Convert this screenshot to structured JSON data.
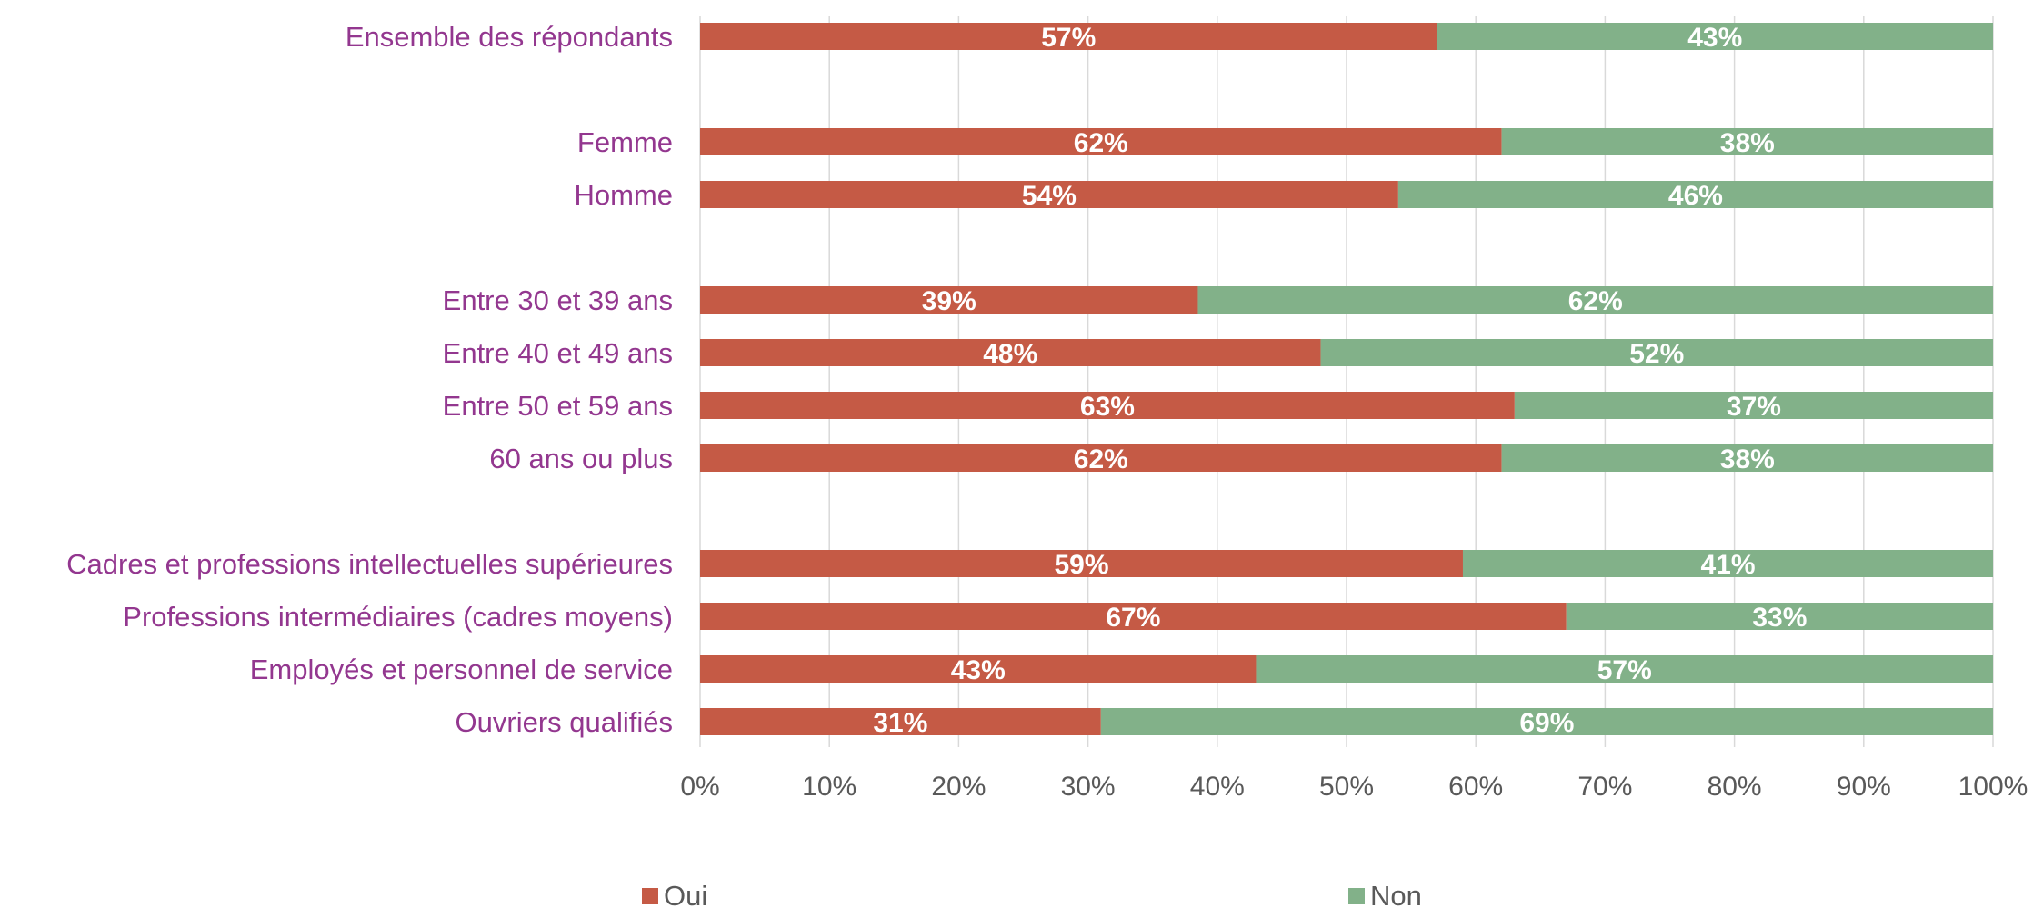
{
  "chart_data": {
    "type": "bar",
    "orientation": "horizontal",
    "stacked": "percent",
    "categories": [
      "Ensemble des répondants",
      "",
      "Femme",
      "Homme",
      "",
      "Entre 30 et 39 ans",
      "Entre 40 et 49 ans",
      "Entre 50 et 59 ans",
      "60 ans ou plus",
      "",
      "Cadres et professions intellectuelles supérieures",
      "Professions intermédiaires (cadres moyens)",
      "Employés et personnel de service",
      "Ouvriers qualifiés"
    ],
    "series": [
      {
        "name": "Oui",
        "color": "#c55a45",
        "values": [
          57,
          null,
          62,
          54,
          null,
          38.5,
          48,
          63,
          62,
          null,
          59,
          67,
          43,
          31
        ],
        "labels": [
          "57%",
          "",
          "62%",
          "54%",
          "",
          "39%",
          "48%",
          "63%",
          "62%",
          "",
          "59%",
          "67%",
          "43%",
          "31%"
        ]
      },
      {
        "name": "Non",
        "color": "#82b189",
        "values": [
          43,
          null,
          38,
          46,
          null,
          61.5,
          52,
          37,
          38,
          null,
          41,
          33,
          57,
          69
        ],
        "labels": [
          "43%",
          "",
          "38%",
          "46%",
          "",
          "62%",
          "52%",
          "37%",
          "38%",
          "",
          "41%",
          "33%",
          "57%",
          "69%"
        ]
      }
    ],
    "xlim": [
      0,
      100
    ],
    "xticks": [
      "0%",
      "10%",
      "20%",
      "30%",
      "40%",
      "50%",
      "60%",
      "70%",
      "80%",
      "90%",
      "100%"
    ],
    "grid": "vertical",
    "legend_position": "bottom",
    "colors": {
      "category_text": "#93378f",
      "tick_text": "#595959",
      "gridline": "#d9d9d9",
      "data_label": "#ffffff"
    }
  }
}
